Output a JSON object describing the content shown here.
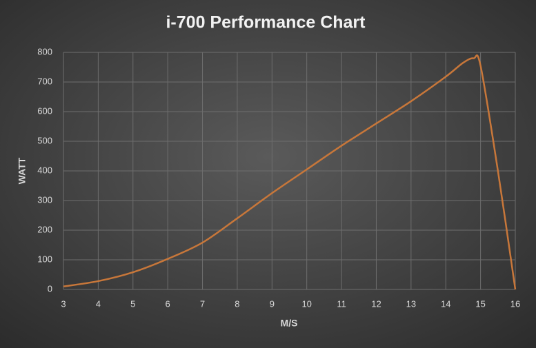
{
  "chart_data": {
    "type": "line",
    "title": "i-700 Performance Chart",
    "x_label": "M/S",
    "y_label": "WATT",
    "series": [
      {
        "color": "#c8773a",
        "x": [
          3,
          4,
          5,
          6,
          7,
          8,
          9,
          10,
          11,
          12,
          13,
          14,
          14.5,
          14.8,
          15,
          15.5,
          16
        ],
        "values": [
          10,
          28,
          58,
          103,
          158,
          240,
          325,
          405,
          485,
          560,
          635,
          718,
          765,
          780,
          755,
          400,
          0
        ]
      }
    ],
    "xlim": [
      3,
      16
    ],
    "xticks": [
      3,
      4,
      5,
      6,
      7,
      8,
      9,
      10,
      11,
      12,
      13,
      14,
      15,
      16
    ],
    "ylim": [
      0,
      800
    ],
    "yticks": [
      0,
      100,
      200,
      300,
      400,
      500,
      600,
      700,
      800
    ],
    "grid": true
  }
}
